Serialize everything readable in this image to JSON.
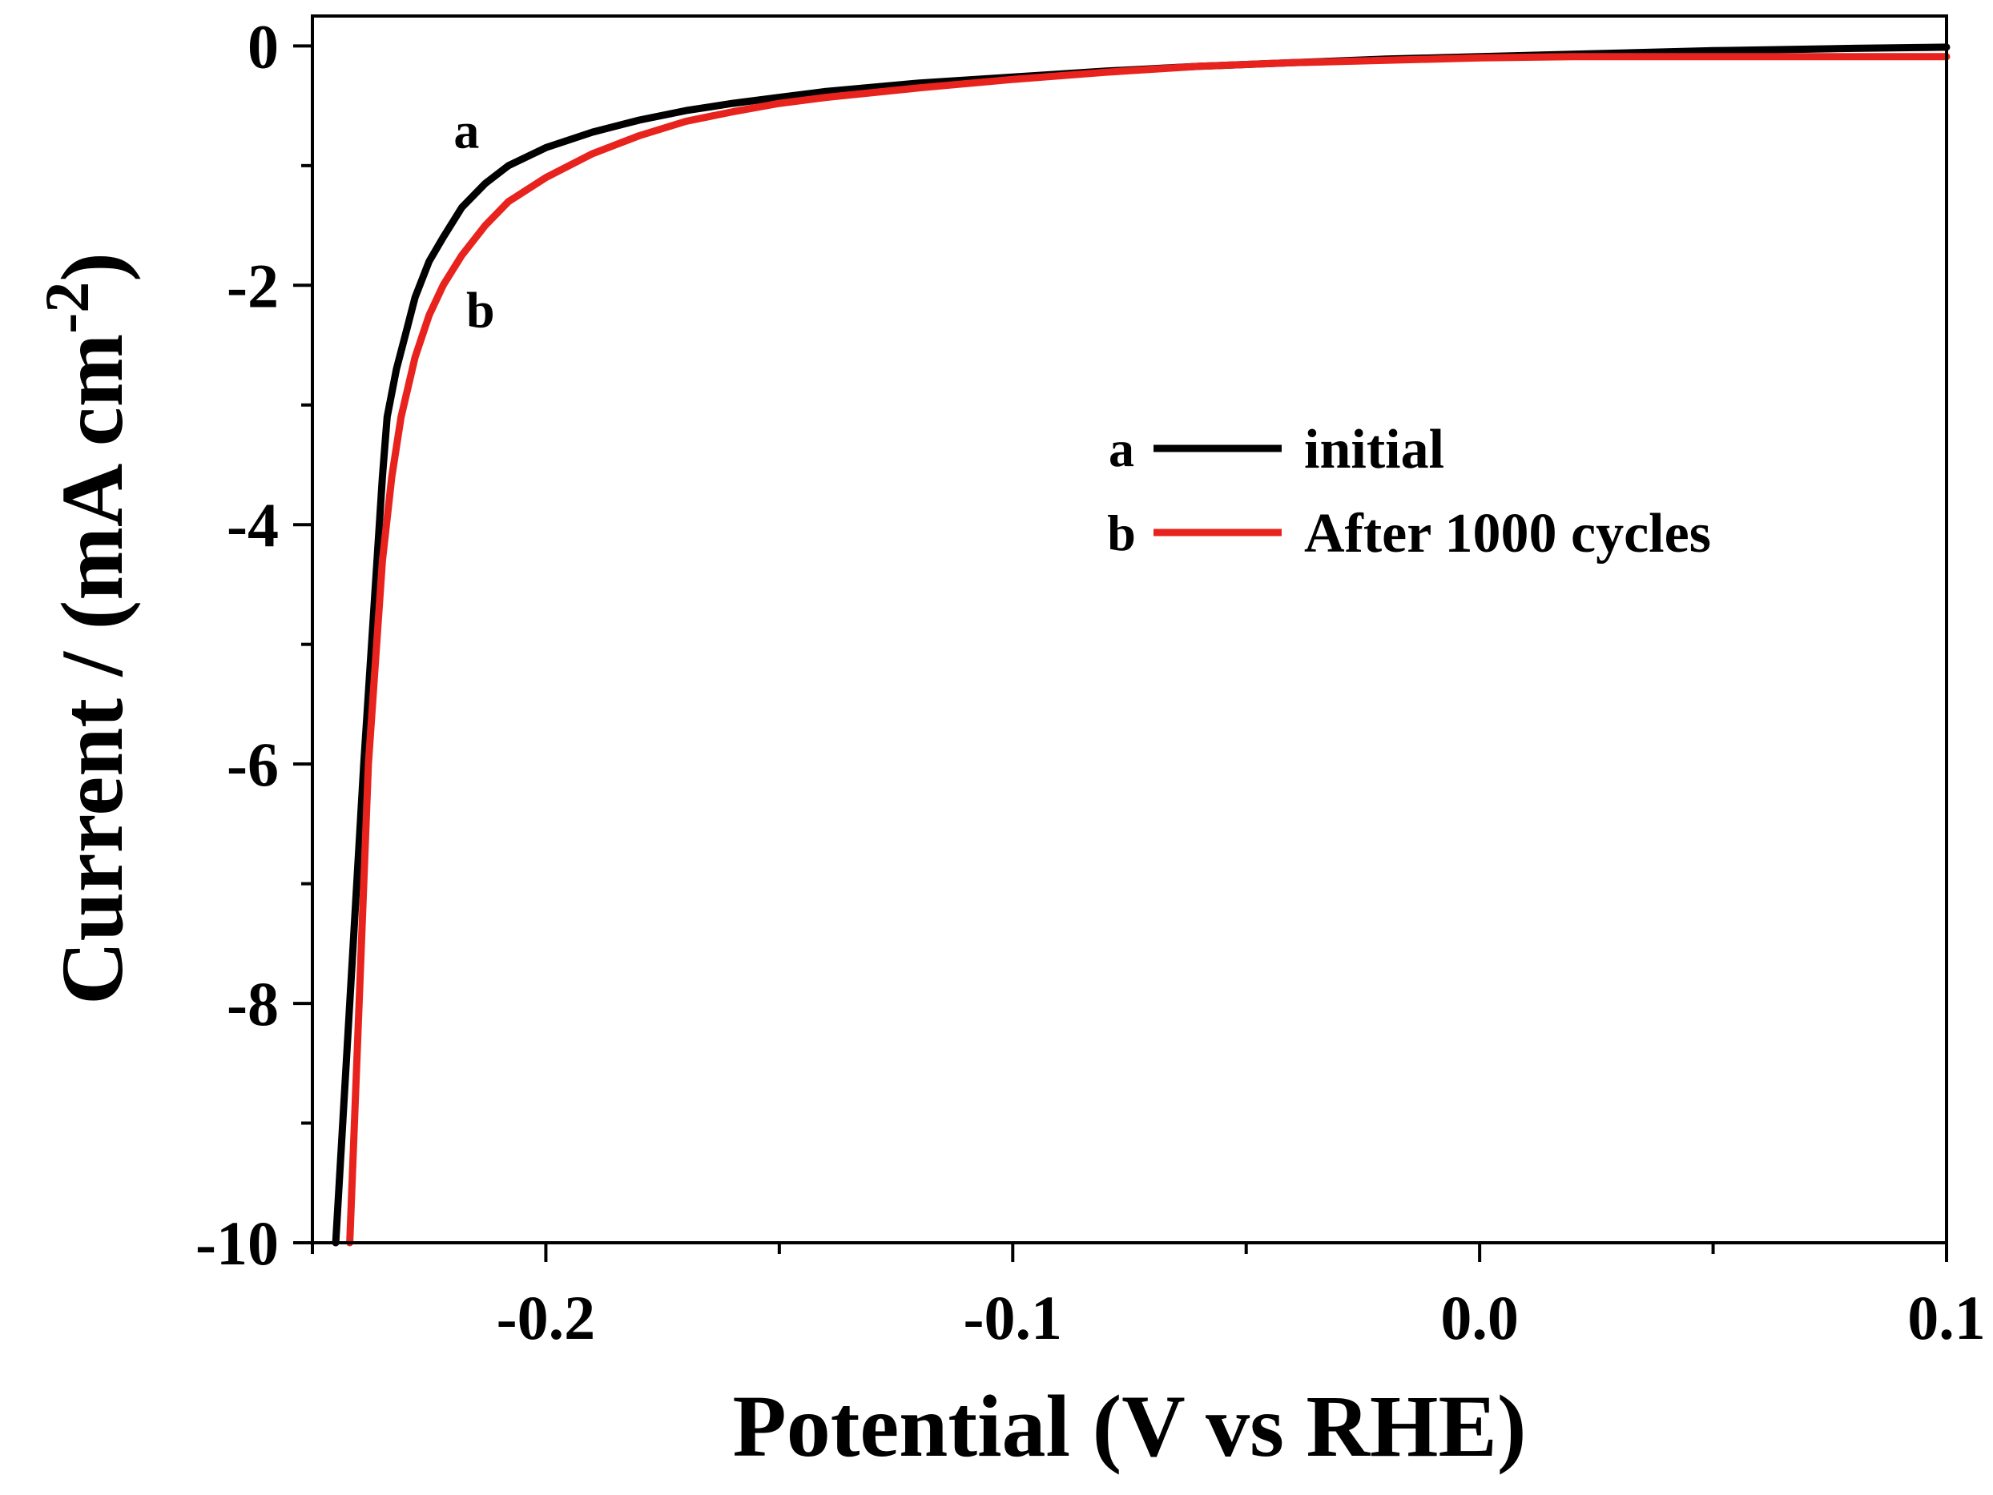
{
  "chart_data": {
    "type": "line",
    "title": "",
    "xlabel": "Potential (V vs RHE)",
    "ylabel_main": "Current / (mA cm",
    "ylabel_sup": "-2",
    "ylabel_close": ")",
    "xlim": [
      -0.25,
      0.1
    ],
    "ylim": [
      -10,
      0.25
    ],
    "x_major_ticks": [
      -0.2,
      -0.1,
      0.0,
      0.1
    ],
    "x_tick_labels": [
      "-0.2",
      "-0.1",
      "0.0",
      "0.1"
    ],
    "x_minor_ticks": [
      -0.25,
      -0.15,
      -0.05,
      0.05
    ],
    "y_major_ticks": [
      0,
      -2,
      -4,
      -6,
      -8,
      -10
    ],
    "y_tick_labels": [
      "0",
      "-2",
      "-4",
      "-6",
      "-8",
      "-10"
    ],
    "y_minor_ticks": [
      -1,
      -3,
      -5,
      -7,
      -9
    ],
    "grid": false,
    "legend_position": "center-right",
    "series": [
      {
        "key": "a",
        "name": "initial",
        "color": "#000000",
        "annotation": "a",
        "x": [
          -0.245,
          -0.242,
          -0.239,
          -0.236,
          -0.235,
          -0.234,
          -0.232,
          -0.23,
          -0.228,
          -0.225,
          -0.222,
          -0.218,
          -0.213,
          -0.208,
          -0.2,
          -0.19,
          -0.18,
          -0.17,
          -0.16,
          -0.15,
          -0.14,
          -0.12,
          -0.1,
          -0.08,
          -0.06,
          -0.04,
          -0.02,
          0.0,
          0.02,
          0.05,
          0.08,
          0.1
        ],
        "y": [
          -10.0,
          -8.0,
          -6.0,
          -4.2,
          -3.6,
          -3.1,
          -2.7,
          -2.4,
          -2.1,
          -1.8,
          -1.6,
          -1.35,
          -1.15,
          -1.0,
          -0.85,
          -0.72,
          -0.62,
          -0.54,
          -0.48,
          -0.43,
          -0.38,
          -0.31,
          -0.26,
          -0.21,
          -0.17,
          -0.14,
          -0.11,
          -0.09,
          -0.07,
          -0.04,
          -0.02,
          -0.01
        ]
      },
      {
        "key": "b",
        "name": "After 1000 cycles",
        "color": "#e8231d",
        "annotation": "b",
        "x": [
          -0.242,
          -0.24,
          -0.238,
          -0.235,
          -0.233,
          -0.231,
          -0.228,
          -0.225,
          -0.222,
          -0.218,
          -0.213,
          -0.208,
          -0.2,
          -0.19,
          -0.18,
          -0.17,
          -0.16,
          -0.15,
          -0.14,
          -0.12,
          -0.1,
          -0.08,
          -0.06,
          -0.04,
          -0.02,
          0.0,
          0.02,
          0.05,
          0.08,
          0.1
        ],
        "y": [
          -10.0,
          -8.0,
          -6.0,
          -4.3,
          -3.6,
          -3.1,
          -2.6,
          -2.25,
          -2.0,
          -1.75,
          -1.5,
          -1.3,
          -1.1,
          -0.9,
          -0.75,
          -0.63,
          -0.55,
          -0.48,
          -0.43,
          -0.35,
          -0.28,
          -0.22,
          -0.17,
          -0.14,
          -0.12,
          -0.1,
          -0.09,
          -0.09,
          -0.09,
          -0.09
        ]
      }
    ],
    "annotations": [
      {
        "text": "a",
        "x": -0.217,
        "y": -0.85
      },
      {
        "text": "b",
        "x": -0.214,
        "y": -2.35
      }
    ]
  }
}
